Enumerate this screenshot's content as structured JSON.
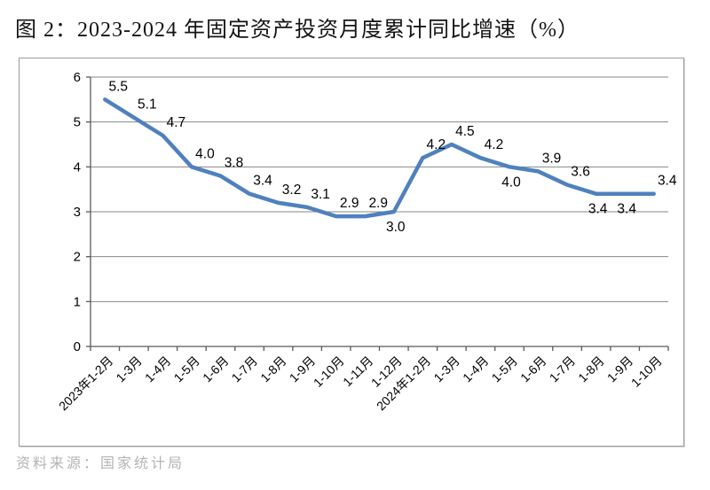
{
  "page": {
    "title": "图 2：2023-2024 年固定资产投资月度累计同比增速（%）",
    "source": "资料来源：国家统计局"
  },
  "chart_data": {
    "type": "line",
    "title": "2023-2024 年固定资产投资月度累计同比增速（%）",
    "categories": [
      "2023年1-2月",
      "1-3月",
      "1-4月",
      "1-5月",
      "1-6月",
      "1-7月",
      "1-8月",
      "1-9月",
      "1-10月",
      "1-11月",
      "1-12月",
      "2024年1-2月",
      "1-3月",
      "1-4月",
      "1-5月",
      "1-6月",
      "1-7月",
      "1-8月",
      "1-9月",
      "1-10月"
    ],
    "values": [
      5.5,
      5.1,
      4.7,
      4.0,
      3.8,
      3.4,
      3.2,
      3.1,
      2.9,
      2.9,
      3.0,
      4.2,
      4.5,
      4.2,
      4.0,
      3.9,
      3.6,
      3.4,
      3.4,
      3.4
    ],
    "data_labels": true,
    "label_positions": [
      "above",
      "above",
      "above",
      "above",
      "above",
      "above",
      "above",
      "above",
      "above",
      "above",
      "below",
      "above",
      "above",
      "above",
      "below",
      "above",
      "above",
      "below",
      "below",
      "above"
    ],
    "xlabel": "",
    "ylabel": "",
    "ylim": [
      0,
      6
    ],
    "yticks": [
      0,
      1,
      2,
      3,
      4,
      5,
      6
    ],
    "grid": "horizontal",
    "legend": "none",
    "line_color": "#4f81bd"
  }
}
